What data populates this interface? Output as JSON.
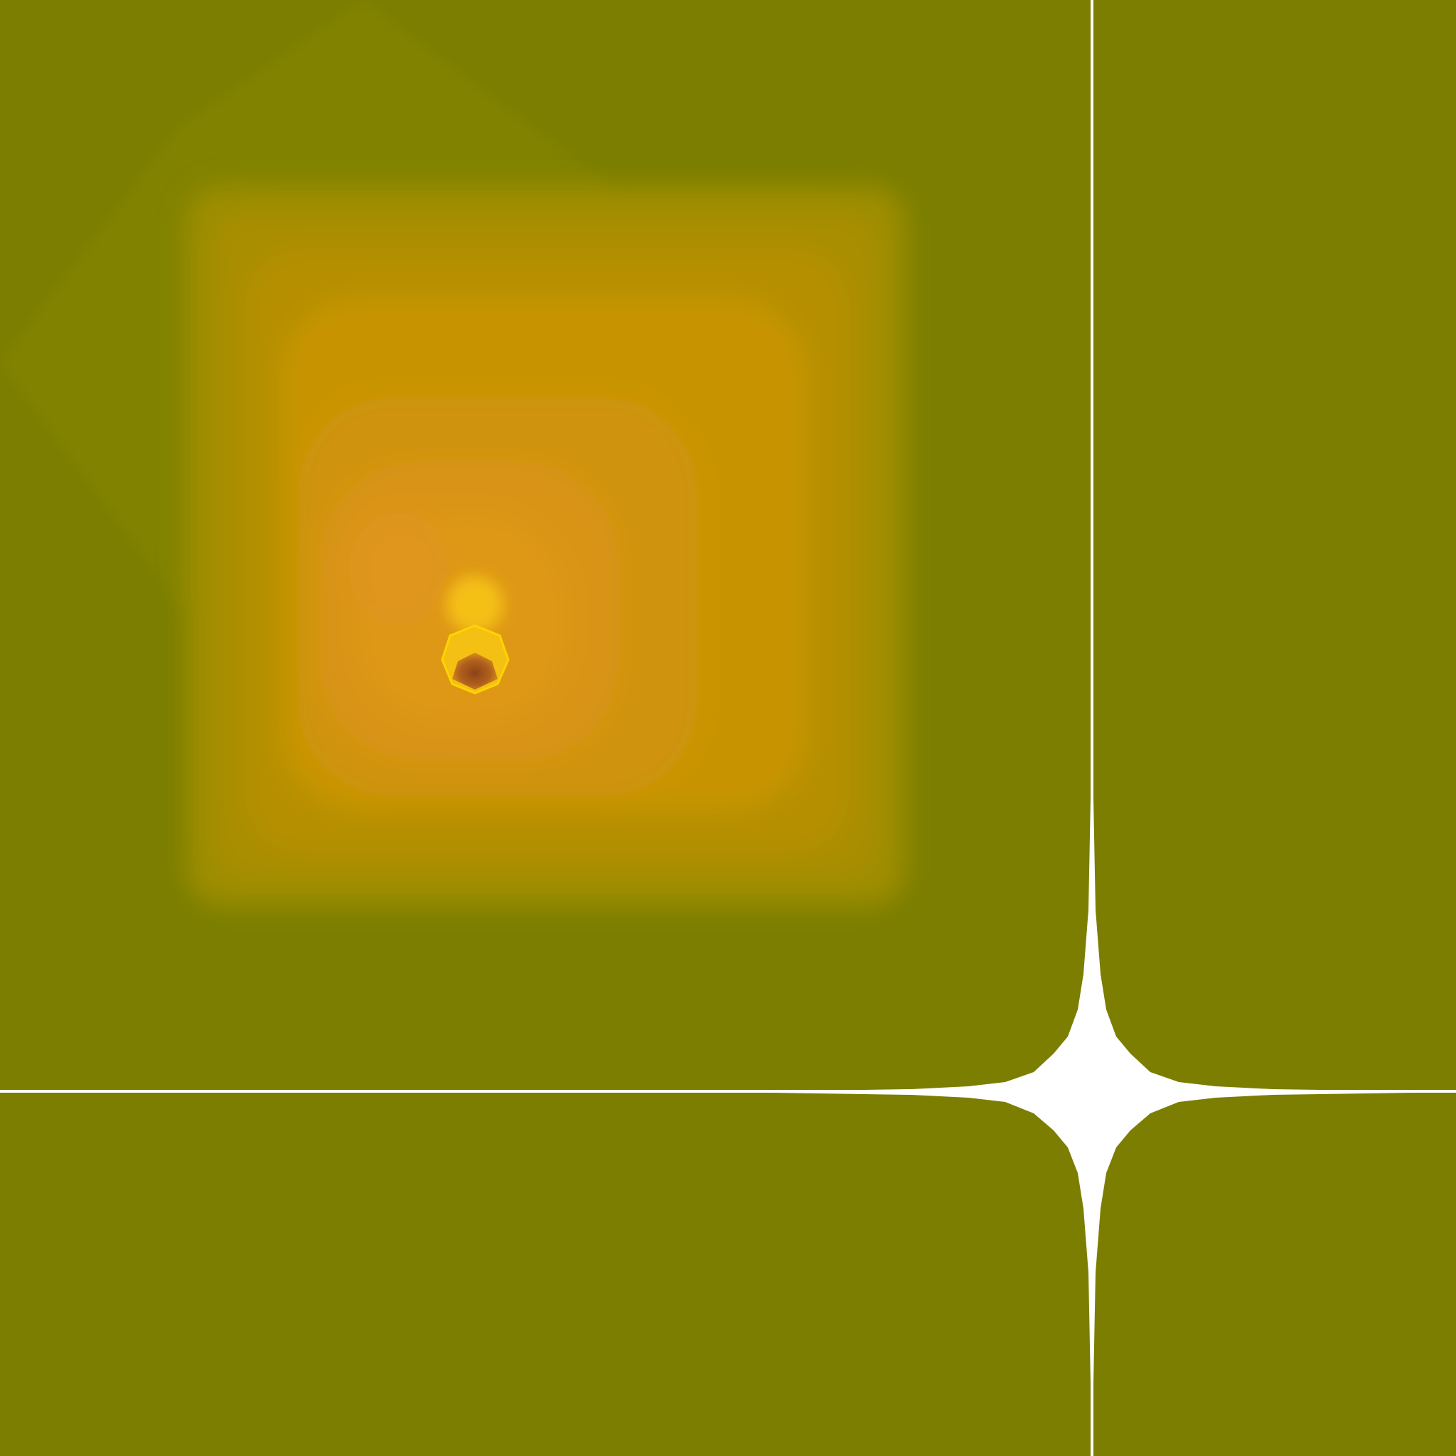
{
  "colors": {
    "background": "#7b7e00",
    "diamond_glow": "#858500",
    "square_edge": "#9e8d00",
    "square_mid": "#c79400",
    "square_core": "#d99412",
    "hot_spot": "#e0951a",
    "bright_spot": "#f5c014",
    "pit_center": "#a4561a",
    "crosshair": "#ffffff"
  },
  "icons": {
    "glow_shape": "rounded-square-gradient",
    "focus_point": "heptagon-spot",
    "reticle": "four-point-star-crosshair"
  }
}
